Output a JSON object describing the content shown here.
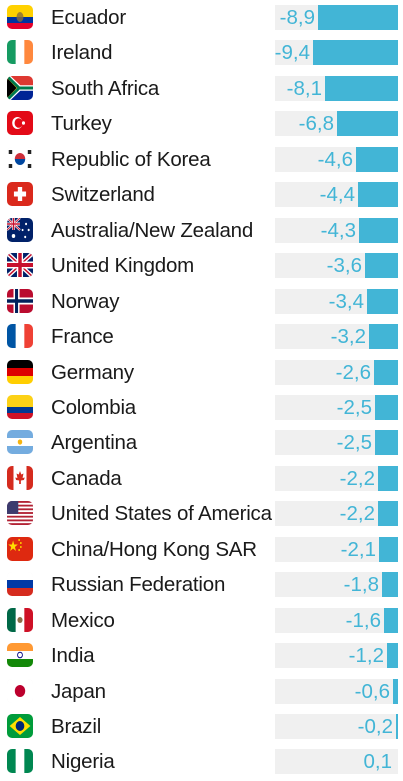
{
  "chart_data": {
    "type": "bar",
    "orientation": "horizontal",
    "categories": [
      "Ecuador",
      "Ireland",
      "South Africa",
      "Turkey",
      "Republic of Korea",
      "Switzerland",
      "Australia/New Zealand",
      "United Kingdom",
      "Norway",
      "France",
      "Germany",
      "Colombia",
      "Argentina",
      "Canada",
      "United States of America",
      "China/Hong Kong SAR",
      "Russian Federation",
      "Mexico",
      "India",
      "Japan",
      "Brazil",
      "Nigeria"
    ],
    "values": [
      -8.9,
      -9.4,
      -8.1,
      -6.8,
      -4.6,
      -4.4,
      -4.3,
      -3.6,
      -3.4,
      -3.2,
      -2.6,
      -2.5,
      -2.5,
      -2.2,
      -2.2,
      -2.1,
      -1.8,
      -1.6,
      -1.2,
      -0.6,
      -0.2,
      0.1
    ],
    "value_labels": [
      "-8,9",
      "-9,4",
      "-8,1",
      "-6,8",
      "-4,6",
      "-4,4",
      "-4,3",
      "-3,6",
      "-3,4",
      "-3,2",
      "-2,6",
      "-2,5",
      "-2,5",
      "-2,2",
      "-2,2",
      "-2,1",
      "-1,8",
      "-1,6",
      "-1,2",
      "-0,6",
      "-0,2",
      "0,1"
    ],
    "flag_icons": [
      "ecuador-flag-icon",
      "ireland-flag-icon",
      "south-africa-flag-icon",
      "turkey-flag-icon",
      "south-korea-flag-icon",
      "switzerland-flag-icon",
      "australia-flag-icon",
      "uk-flag-icon",
      "norway-flag-icon",
      "france-flag-icon",
      "germany-flag-icon",
      "colombia-flag-icon",
      "argentina-flag-icon",
      "canada-flag-icon",
      "usa-flag-icon",
      "china-flag-icon",
      "russia-flag-icon",
      "mexico-flag-icon",
      "india-flag-icon",
      "japan-flag-icon",
      "brazil-flag-icon",
      "nigeria-flag-icon"
    ],
    "xlim": [
      -9.4,
      0
    ],
    "grid": false,
    "bar_color": "#42b5d6",
    "track_color": "#f0f0f0",
    "label_color": "#1a1a1a"
  }
}
